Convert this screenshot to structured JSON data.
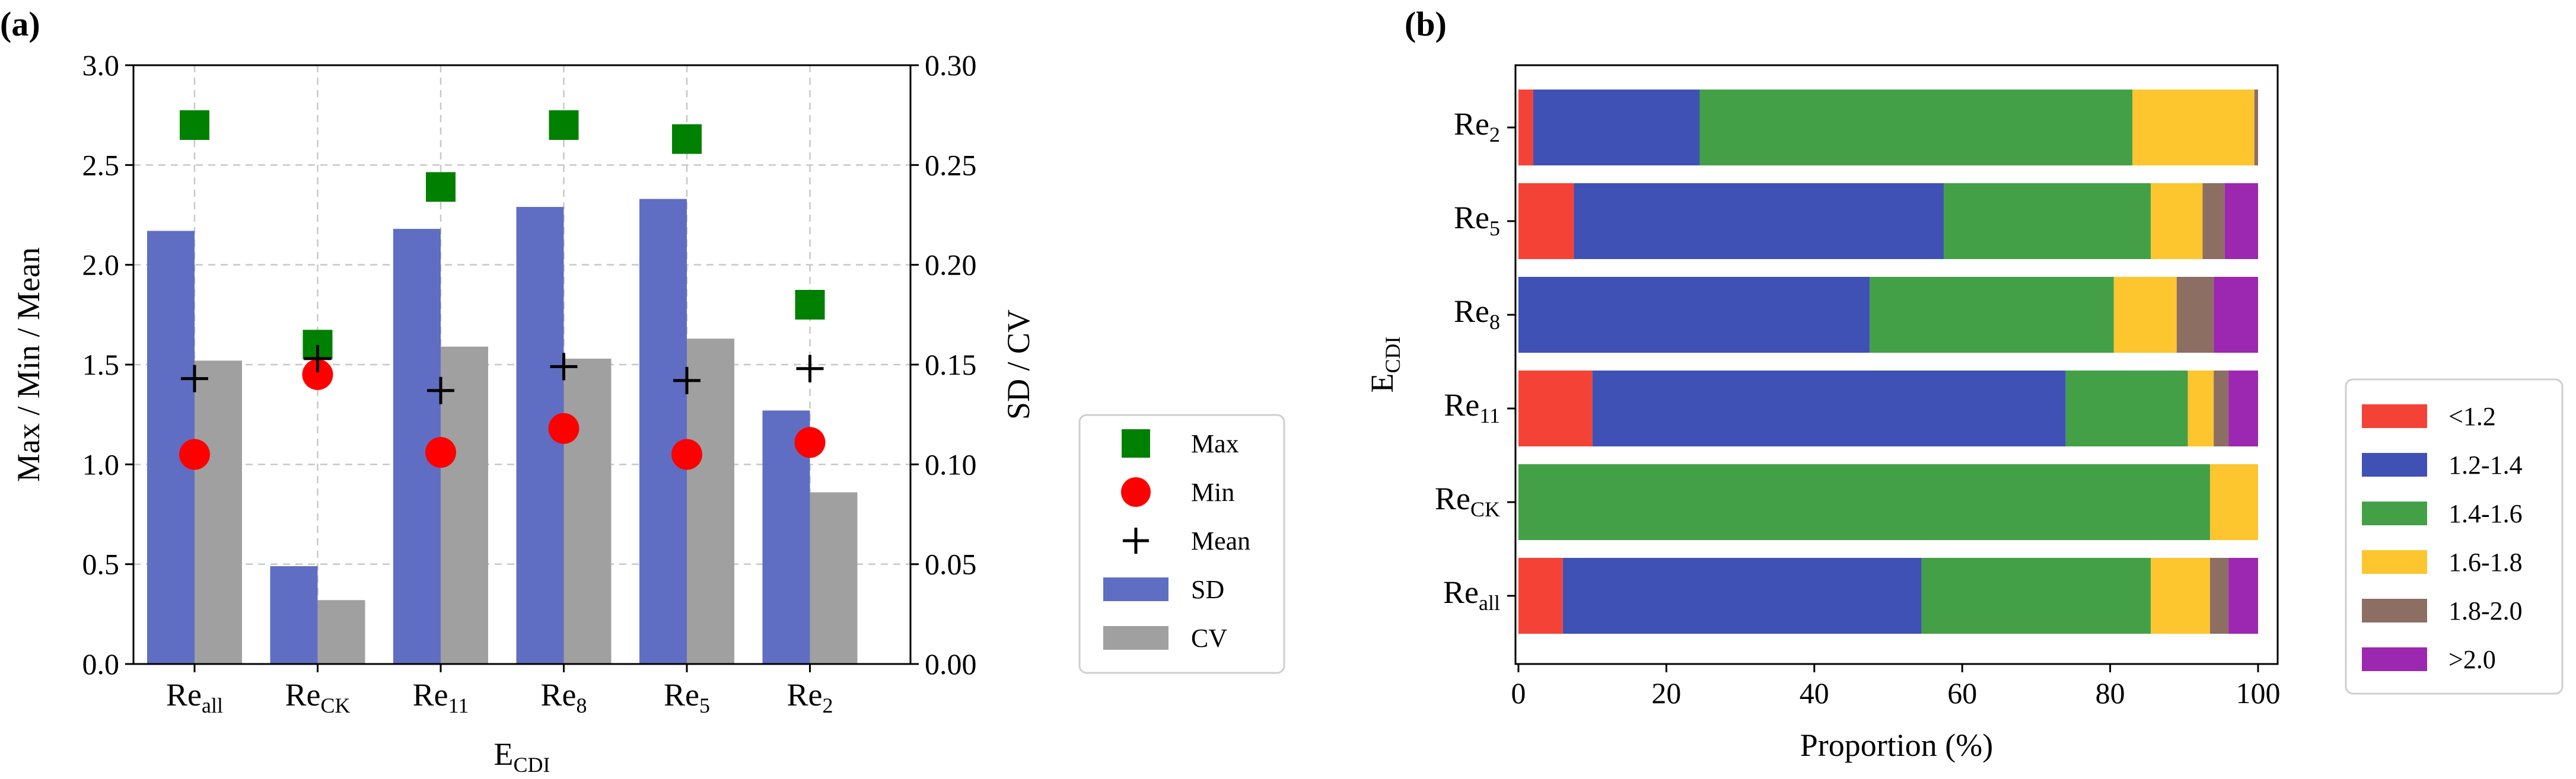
{
  "panel_labels": {
    "a": "(a)",
    "b": "(b)"
  },
  "colors": {
    "max": "#008000",
    "min": "#ff0000",
    "mean": "#000000",
    "sd": "#5f6ec3",
    "cv": "#a0a0a0",
    "b_1": "#f44336",
    "b_2": "#3f51b5",
    "b_3": "#43a047",
    "b_4": "#fdc52e",
    "b_5": "#8d6e63",
    "b_6": "#9c27b0"
  },
  "chart_data": [
    {
      "type": "bar",
      "panel": "a",
      "categories": [
        "Re_all",
        "Re_CK",
        "Re_11",
        "Re_8",
        "Re_5",
        "Re_2"
      ],
      "category_labels": [
        {
          "base": "Re",
          "sub": "all"
        },
        {
          "base": "Re",
          "sub": "CK"
        },
        {
          "base": "Re",
          "sub": "11"
        },
        {
          "base": "Re",
          "sub": "8"
        },
        {
          "base": "Re",
          "sub": "5"
        },
        {
          "base": "Re",
          "sub": "2"
        }
      ],
      "xlabel": {
        "base": "E",
        "sub": "CDI"
      },
      "ylabel_left": "Max / Min / Mean",
      "ylabel_right": "SD / CV",
      "ylim_left": [
        0,
        3.0
      ],
      "ylim_right": [
        0,
        0.3
      ],
      "yticks_left": [
        "0.0",
        "0.5",
        "1.0",
        "1.5",
        "2.0",
        "2.5",
        "3.0"
      ],
      "yticks_right": [
        "0.00",
        "0.05",
        "0.10",
        "0.15",
        "0.20",
        "0.25",
        "0.30"
      ],
      "grid": true,
      "legend_position": "outside-right",
      "series": [
        {
          "name": "Max",
          "axis": "left",
          "kind": "marker-square",
          "values": [
            2.7,
            1.6,
            2.39,
            2.7,
            2.63,
            1.8
          ]
        },
        {
          "name": "Min",
          "axis": "left",
          "kind": "marker-circle",
          "values": [
            1.05,
            1.45,
            1.06,
            1.18,
            1.05,
            1.11
          ]
        },
        {
          "name": "Mean",
          "axis": "left",
          "kind": "marker-plus",
          "values": [
            1.43,
            1.53,
            1.37,
            1.49,
            1.42,
            1.48
          ]
        },
        {
          "name": "SD",
          "axis": "right",
          "kind": "bar",
          "values": [
            0.217,
            0.049,
            0.218,
            0.229,
            0.233,
            0.127
          ]
        },
        {
          "name": "CV",
          "axis": "right",
          "kind": "bar",
          "values": [
            0.152,
            0.032,
            0.159,
            0.153,
            0.163,
            0.086
          ]
        }
      ]
    },
    {
      "type": "bar",
      "orientation": "horizontal",
      "stacked": true,
      "panel": "b",
      "categories": [
        "Re_2",
        "Re_5",
        "Re_8",
        "Re_11",
        "Re_CK",
        "Re_all"
      ],
      "category_labels": [
        {
          "base": "Re",
          "sub": "2"
        },
        {
          "base": "Re",
          "sub": "5"
        },
        {
          "base": "Re",
          "sub": "8"
        },
        {
          "base": "Re",
          "sub": "11"
        },
        {
          "base": "Re",
          "sub": "CK"
        },
        {
          "base": "Re",
          "sub": "all"
        }
      ],
      "xlabel": "Proportion (%)",
      "ylabel": {
        "base": "E",
        "sub": "CDI"
      },
      "xlim": [
        0,
        100
      ],
      "xticks": [
        "0",
        "20",
        "40",
        "60",
        "80",
        "100"
      ],
      "grid": false,
      "legend_position": "outside-right",
      "series": [
        {
          "name": "<1.2",
          "values": [
            2,
            7.5,
            0,
            10,
            0,
            6
          ]
        },
        {
          "name": "1.2-1.4",
          "values": [
            22.5,
            50,
            47.5,
            64,
            0,
            48.5
          ]
        },
        {
          "name": "1.4-1.6",
          "values": [
            58.5,
            28,
            33,
            16.5,
            93.5,
            31
          ]
        },
        {
          "name": "1.6-1.8",
          "values": [
            16.5,
            7,
            8.5,
            3.5,
            6.5,
            8
          ]
        },
        {
          "name": "1.8-2.0",
          "values": [
            0.5,
            3,
            5,
            2,
            0,
            2.5
          ]
        },
        {
          "name": ">2.0",
          "values": [
            0,
            4.5,
            6,
            4,
            0,
            4
          ]
        }
      ]
    }
  ]
}
